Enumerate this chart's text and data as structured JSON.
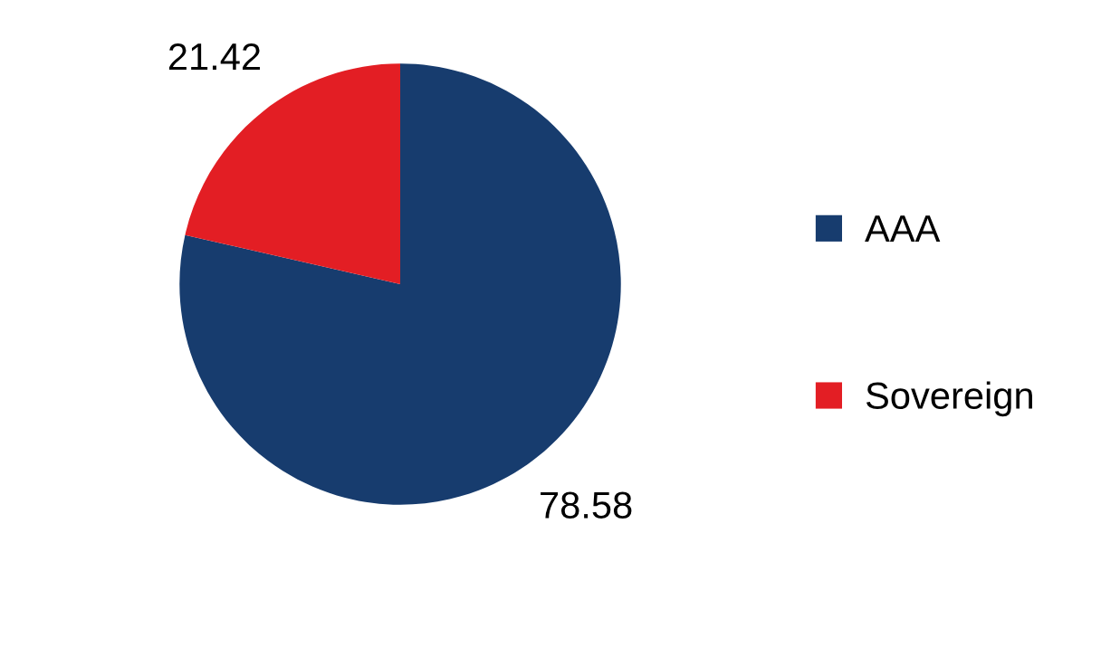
{
  "chart_data": {
    "type": "pie",
    "categories": [
      "AAA",
      "Sovereign"
    ],
    "values": [
      78.58,
      21.42
    ],
    "colors": [
      "#173c6e",
      "#e31e24"
    ],
    "data_labels": true,
    "legend": "right"
  }
}
